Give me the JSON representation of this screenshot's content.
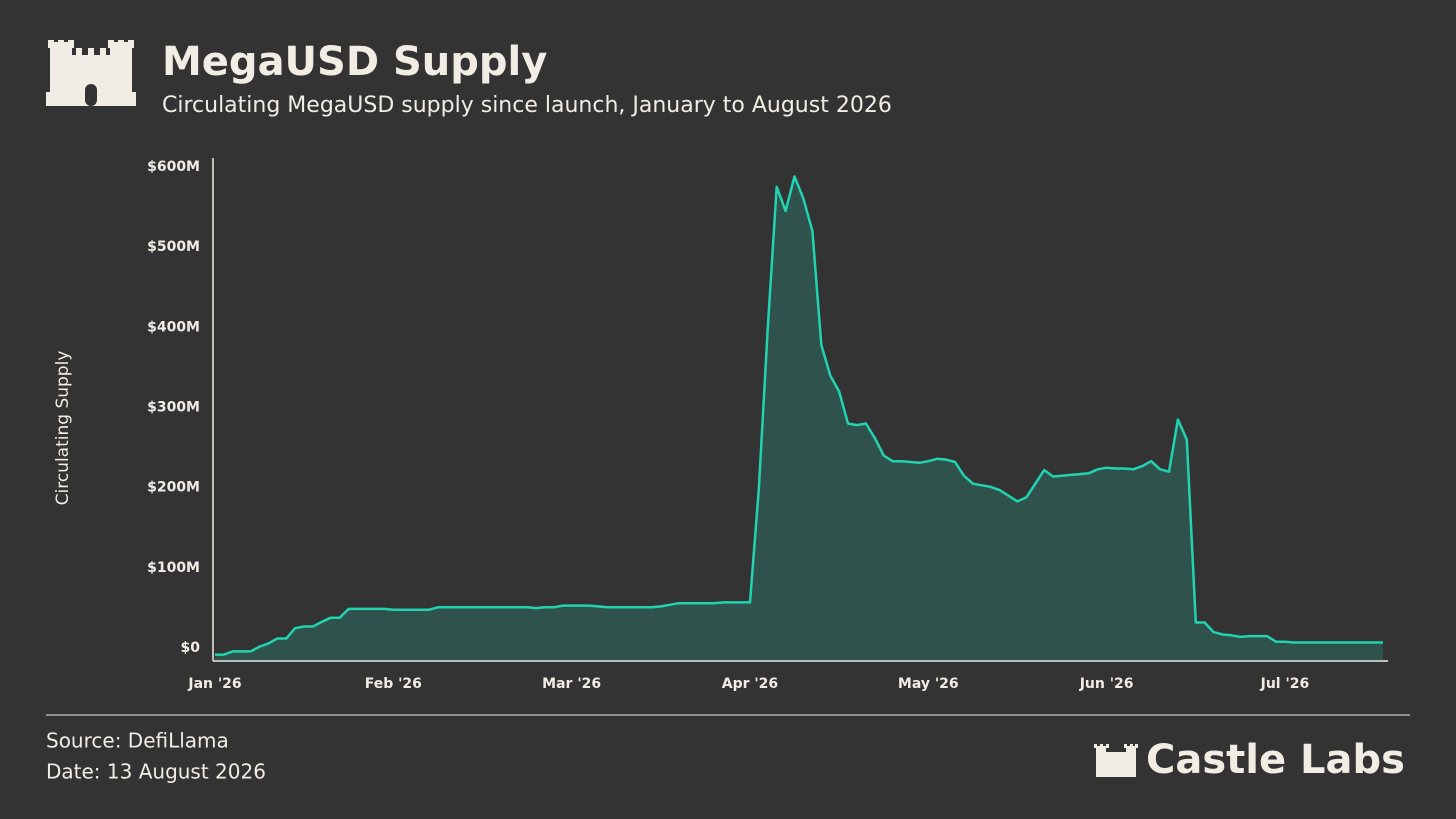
{
  "header": {
    "title": "MegaUSD Supply",
    "subtitle": "Circulating MegaUSD supply since launch, January to August 2026"
  },
  "chart_data": {
    "type": "area",
    "y_label": "Circulating Supply",
    "categories": [
      "Jan '26",
      null,
      null,
      null,
      null,
      null,
      null,
      null,
      null,
      null,
      null,
      null,
      null,
      null,
      null,
      null,
      null,
      null,
      null,
      null,
      "Feb '26",
      null,
      null,
      null,
      null,
      null,
      null,
      null,
      null,
      null,
      null,
      null,
      null,
      null,
      null,
      null,
      null,
      null,
      null,
      null,
      "Mar '26",
      null,
      null,
      null,
      null,
      null,
      null,
      null,
      null,
      null,
      null,
      null,
      null,
      null,
      null,
      null,
      null,
      null,
      null,
      null,
      "Apr '26",
      null,
      null,
      null,
      null,
      null,
      null,
      null,
      null,
      null,
      null,
      null,
      null,
      null,
      null,
      null,
      null,
      null,
      null,
      null,
      "May '26",
      null,
      null,
      null,
      null,
      null,
      null,
      null,
      null,
      null,
      null,
      null,
      null,
      null,
      null,
      null,
      null,
      null,
      null,
      null,
      "Jun '26",
      null,
      null,
      null,
      null,
      null,
      null,
      null,
      null,
      null,
      null,
      null,
      null,
      null,
      null,
      null,
      null,
      null,
      null,
      null,
      "Jul '26",
      null,
      null,
      null,
      null,
      null,
      null,
      null,
      null,
      null,
      null,
      null
    ],
    "series": [
      {
        "name": "Circulating Supply",
        "color": "#22d3b2",
        "values": [
          -8,
          -8,
          -4,
          -4,
          -4,
          2,
          6,
          12,
          12,
          25,
          27,
          27,
          33,
          38,
          38,
          49,
          49,
          49,
          49,
          49,
          48,
          48,
          48,
          48,
          48,
          51,
          51,
          51,
          51,
          51,
          51,
          51,
          51,
          51,
          51,
          51,
          50,
          51,
          51,
          53,
          53,
          53,
          53,
          52,
          51,
          51,
          51,
          51,
          51,
          51,
          52,
          54,
          56,
          56,
          56,
          56,
          56,
          57,
          57,
          57,
          57,
          200,
          400,
          575,
          545,
          588,
          560,
          520,
          378,
          340,
          320,
          280,
          278,
          280,
          262,
          240,
          233,
          233,
          232,
          231,
          233,
          236,
          235,
          232,
          215,
          205,
          203,
          201,
          197,
          190,
          183,
          188,
          205,
          222,
          214,
          215,
          216,
          217,
          218,
          223,
          225,
          224,
          224,
          223,
          227,
          233,
          223,
          220,
          285,
          260,
          32,
          32,
          20,
          17,
          16,
          14,
          15,
          15,
          15,
          8,
          8,
          7,
          7,
          7,
          7,
          7,
          7,
          7,
          7,
          7,
          7,
          7
        ]
      }
    ],
    "ylim": [
      -16,
      611
    ],
    "yticks": [
      {
        "value": 0,
        "label": "$0"
      },
      {
        "value": 100,
        "label": "$100M"
      },
      {
        "value": 200,
        "label": "$200M"
      },
      {
        "value": 300,
        "label": "$300M"
      },
      {
        "value": 400,
        "label": "$400M"
      },
      {
        "value": 500,
        "label": "$500M"
      },
      {
        "value": 600,
        "label": "$600M"
      }
    ],
    "grid": false
  },
  "footer": {
    "source": "Source: DefiLlama",
    "date": "Date: 13 August 2026",
    "brand": "Castle Labs"
  }
}
